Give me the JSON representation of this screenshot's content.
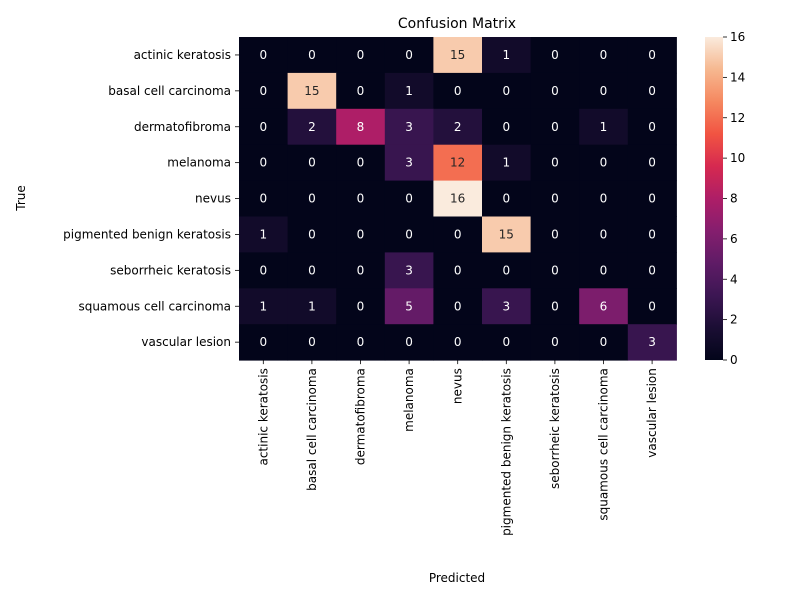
{
  "chart_data": {
    "type": "heatmap",
    "title": "Confusion Matrix",
    "xlabel": "Predicted",
    "ylabel": "True",
    "labels": [
      "actinic keratosis",
      "basal cell carcinoma",
      "dermatofibroma",
      "melanoma",
      "nevus",
      "pigmented benign keratosis",
      "seborrheic keratosis",
      "squamous cell carcinoma",
      "vascular lesion"
    ],
    "matrix": [
      [
        0,
        0,
        0,
        0,
        15,
        1,
        0,
        0,
        0
      ],
      [
        0,
        15,
        0,
        1,
        0,
        0,
        0,
        0,
        0
      ],
      [
        0,
        2,
        8,
        3,
        2,
        0,
        0,
        1,
        0
      ],
      [
        0,
        0,
        0,
        3,
        12,
        1,
        0,
        0,
        0
      ],
      [
        0,
        0,
        0,
        0,
        16,
        0,
        0,
        0,
        0
      ],
      [
        1,
        0,
        0,
        0,
        0,
        15,
        0,
        0,
        0
      ],
      [
        0,
        0,
        0,
        3,
        0,
        0,
        0,
        0,
        0
      ],
      [
        1,
        1,
        0,
        5,
        0,
        3,
        0,
        6,
        0
      ],
      [
        0,
        0,
        0,
        0,
        0,
        0,
        0,
        0,
        3
      ]
    ],
    "colorbar": {
      "min": 0,
      "max": 16,
      "ticks": [
        0,
        2,
        4,
        6,
        8,
        10,
        12,
        14,
        16
      ]
    },
    "colormap": "rocket",
    "grid": false
  }
}
